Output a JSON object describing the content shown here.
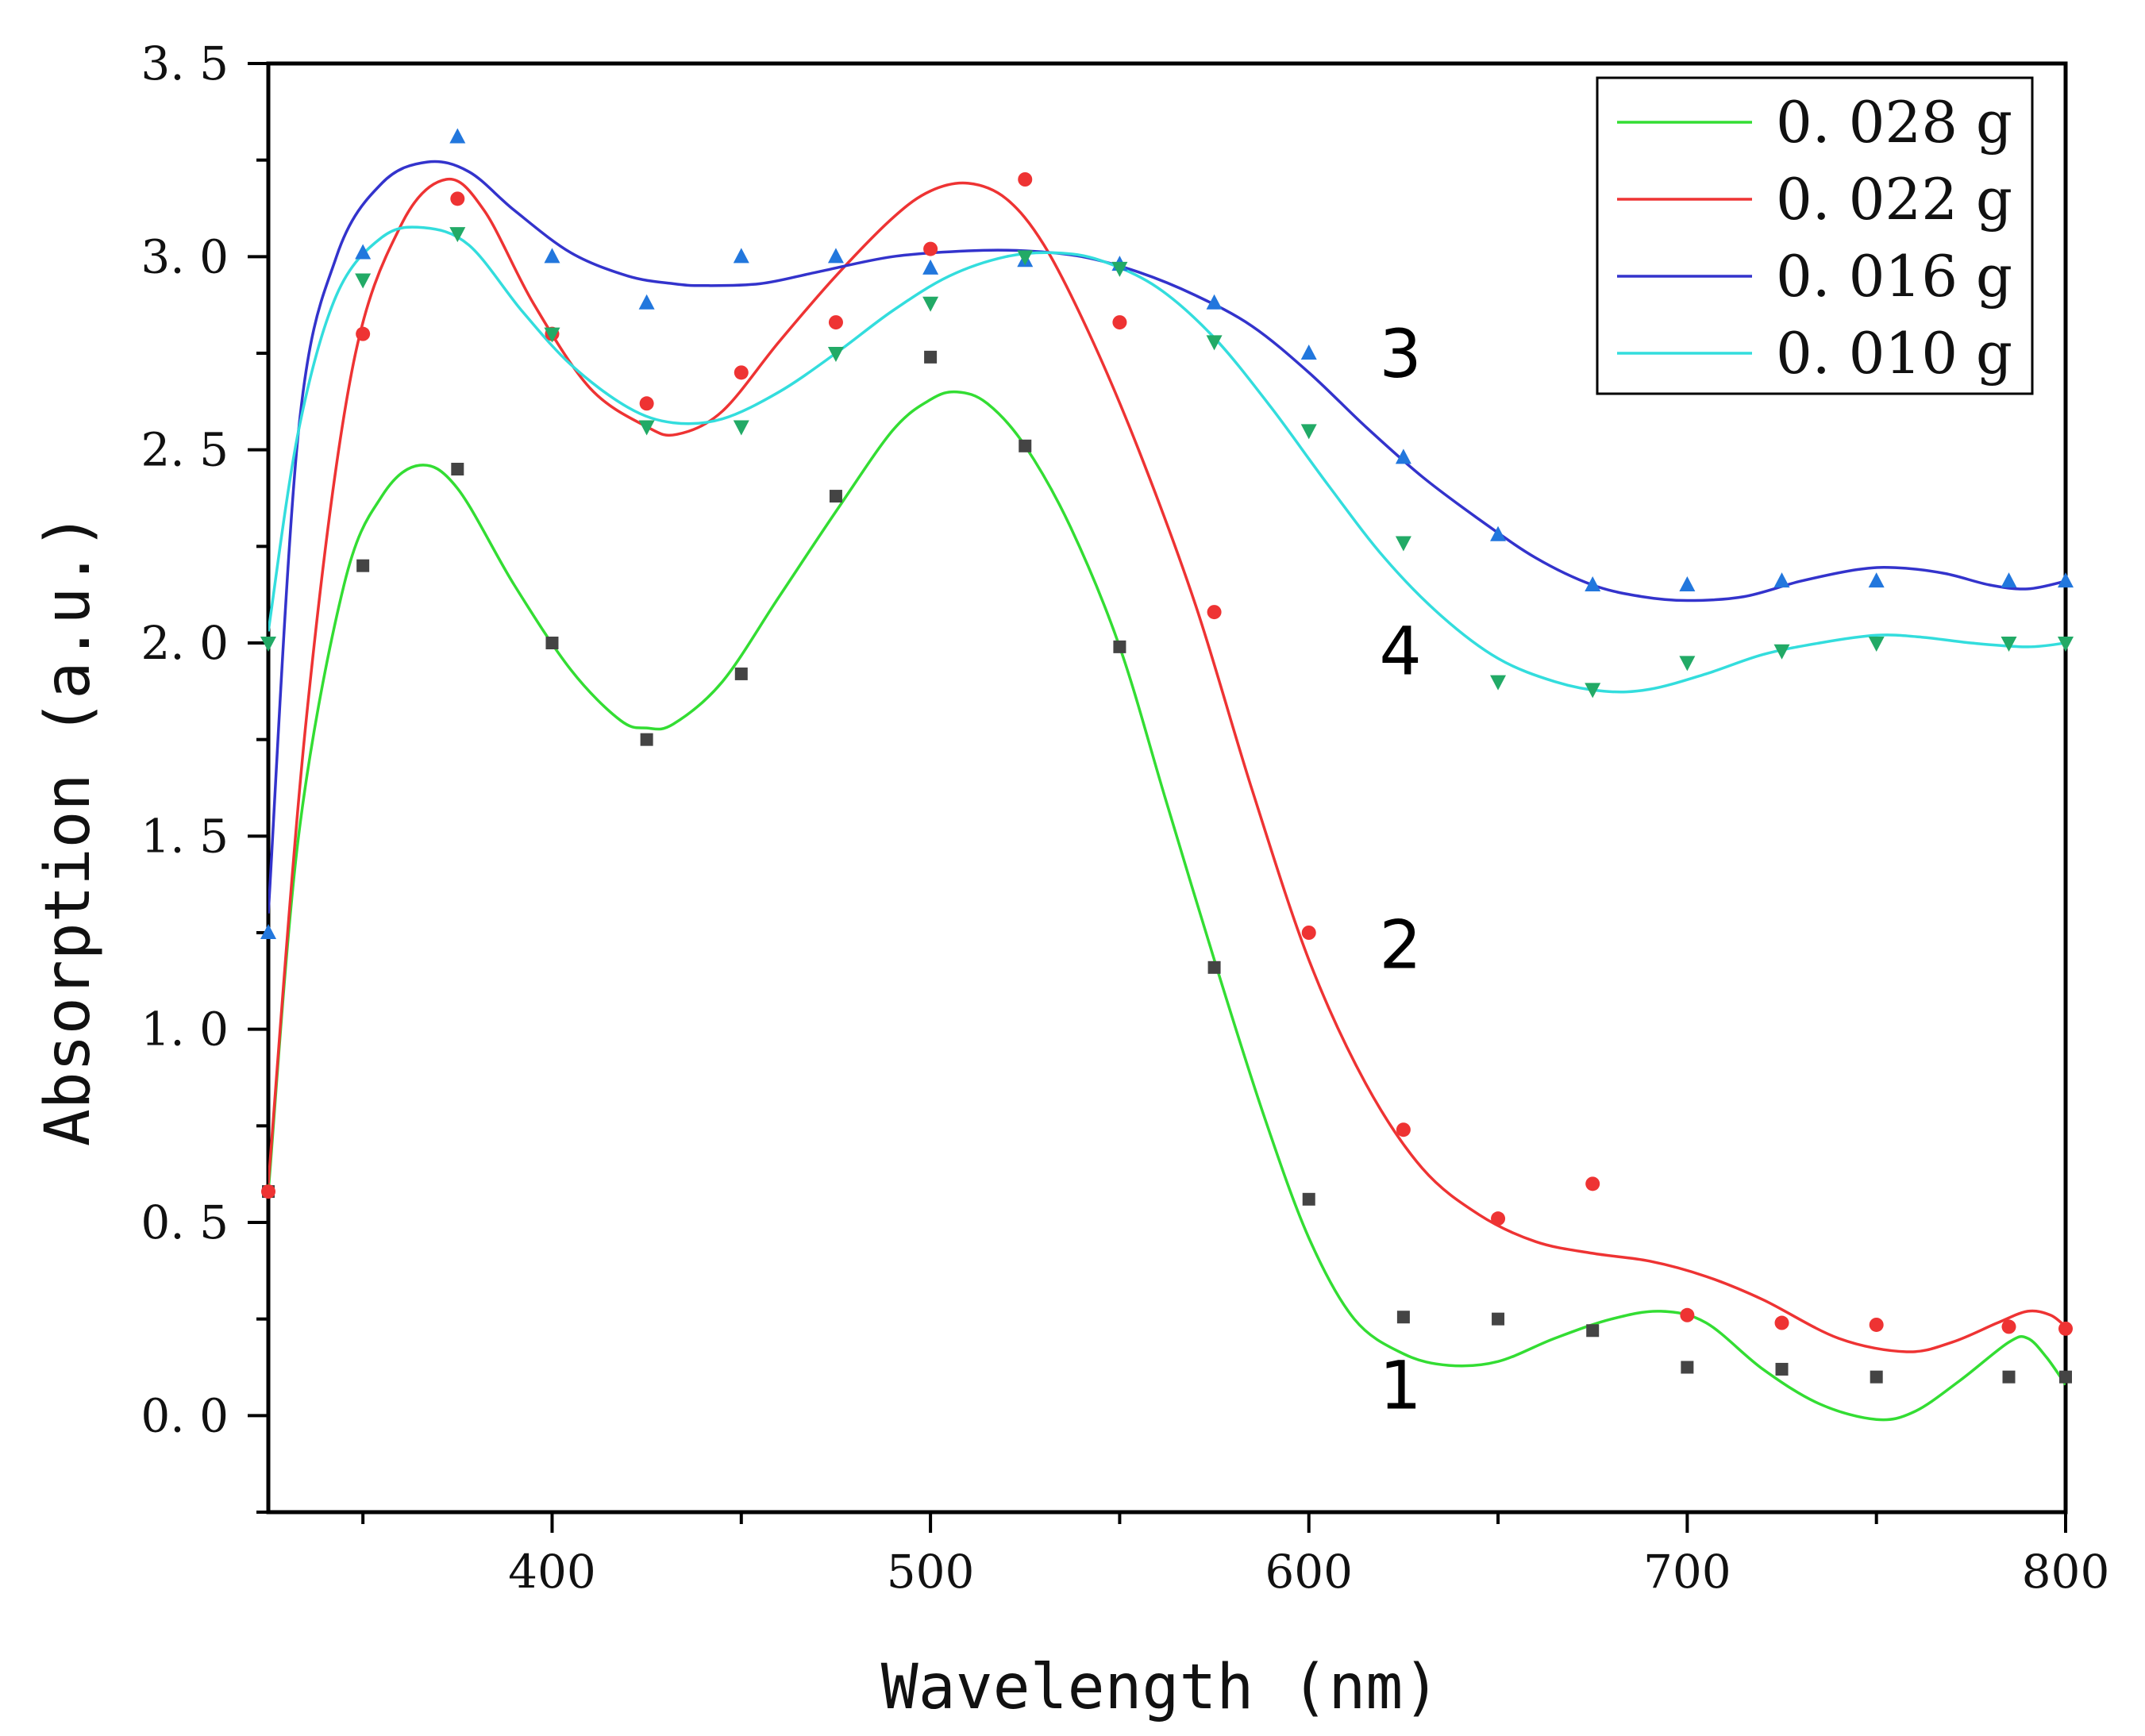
{
  "chart_data": {
    "type": "scatter",
    "xlabel": "Wavelength (nm)",
    "ylabel": "Absorption (a.u.)",
    "xlim": [
      325,
      800
    ],
    "ylim": [
      -0.25,
      3.5
    ],
    "xticks": [
      400,
      500,
      600,
      700,
      800
    ],
    "xtick_labels": [
      "400",
      "500",
      "600",
      "700",
      "800"
    ],
    "x_minor_ticks": [
      350,
      450,
      550,
      650,
      750
    ],
    "yticks": [
      0.0,
      0.5,
      1.0,
      1.5,
      2.0,
      2.5,
      3.0,
      3.5
    ],
    "ytick_labels": [
      "0. 0",
      "0. 5",
      "1. 0",
      "1. 5",
      "2. 0",
      "2. 5",
      "3. 0",
      "3. 5"
    ],
    "y_minor_ticks": [
      -0.25,
      0.25,
      0.75,
      1.25,
      1.75,
      2.25,
      2.75,
      3.25
    ],
    "legend_position": "top-right",
    "series": [
      {
        "name": "0. 028 g",
        "curve_label": "1",
        "curve_label_at": [
          620,
          0.08
        ],
        "line_color": "#33dd33",
        "marker": "square",
        "marker_color": "#444444",
        "points": [
          [
            325,
            0.58
          ],
          [
            350,
            2.2
          ],
          [
            375,
            2.45
          ],
          [
            400,
            2.0
          ],
          [
            425,
            1.75
          ],
          [
            450,
            1.92
          ],
          [
            475,
            2.38
          ],
          [
            500,
            2.74
          ],
          [
            525,
            2.51
          ],
          [
            550,
            1.99
          ],
          [
            575,
            1.16
          ],
          [
            600,
            0.56
          ],
          [
            625,
            0.255
          ],
          [
            650,
            0.25
          ],
          [
            675,
            0.22
          ],
          [
            700,
            0.125
          ],
          [
            725,
            0.12
          ],
          [
            750,
            0.1
          ],
          [
            785,
            0.1
          ],
          [
            800,
            0.1
          ]
        ],
        "curve": [
          [
            325,
            0.58
          ],
          [
            333,
            1.5
          ],
          [
            345,
            2.15
          ],
          [
            355,
            2.38
          ],
          [
            365,
            2.46
          ],
          [
            375,
            2.4
          ],
          [
            390,
            2.15
          ],
          [
            405,
            1.93
          ],
          [
            418,
            1.8
          ],
          [
            425,
            1.78
          ],
          [
            432,
            1.79
          ],
          [
            445,
            1.9
          ],
          [
            460,
            2.12
          ],
          [
            475,
            2.34
          ],
          [
            490,
            2.55
          ],
          [
            500,
            2.63
          ],
          [
            507,
            2.65
          ],
          [
            515,
            2.62
          ],
          [
            525,
            2.51
          ],
          [
            537,
            2.3
          ],
          [
            550,
            1.99
          ],
          [
            562,
            1.6
          ],
          [
            575,
            1.18
          ],
          [
            588,
            0.78
          ],
          [
            600,
            0.46
          ],
          [
            612,
            0.25
          ],
          [
            625,
            0.16
          ],
          [
            637,
            0.13
          ],
          [
            650,
            0.14
          ],
          [
            665,
            0.2
          ],
          [
            680,
            0.25
          ],
          [
            693,
            0.27
          ],
          [
            705,
            0.24
          ],
          [
            720,
            0.12
          ],
          [
            735,
            0.03
          ],
          [
            750,
            -0.01
          ],
          [
            760,
            0.01
          ],
          [
            772,
            0.09
          ],
          [
            785,
            0.19
          ],
          [
            790,
            0.2
          ],
          [
            795,
            0.15
          ],
          [
            800,
            0.08
          ]
        ]
      },
      {
        "name": "0. 022 g",
        "curve_label": "2",
        "curve_label_at": [
          620,
          1.22
        ],
        "line_color": "#ee3333",
        "marker": "circle",
        "marker_color": "#ee3333",
        "points": [
          [
            325,
            0.58
          ],
          [
            350,
            2.8
          ],
          [
            375,
            3.15
          ],
          [
            400,
            2.8
          ],
          [
            425,
            2.62
          ],
          [
            450,
            2.7
          ],
          [
            475,
            2.83
          ],
          [
            500,
            3.02
          ],
          [
            525,
            3.2
          ],
          [
            550,
            2.83
          ],
          [
            575,
            2.08
          ],
          [
            600,
            1.25
          ],
          [
            625,
            0.74
          ],
          [
            650,
            0.51
          ],
          [
            675,
            0.6
          ],
          [
            700,
            0.26
          ],
          [
            725,
            0.24
          ],
          [
            750,
            0.235
          ],
          [
            785,
            0.23
          ],
          [
            800,
            0.225
          ]
        ],
        "curve": [
          [
            325,
            0.6
          ],
          [
            335,
            1.8
          ],
          [
            347,
            2.7
          ],
          [
            360,
            3.08
          ],
          [
            372,
            3.2
          ],
          [
            382,
            3.12
          ],
          [
            395,
            2.88
          ],
          [
            410,
            2.66
          ],
          [
            425,
            2.56
          ],
          [
            433,
            2.54
          ],
          [
            445,
            2.6
          ],
          [
            460,
            2.78
          ],
          [
            475,
            2.95
          ],
          [
            490,
            3.1
          ],
          [
            500,
            3.17
          ],
          [
            510,
            3.19
          ],
          [
            520,
            3.15
          ],
          [
            530,
            3.03
          ],
          [
            542,
            2.8
          ],
          [
            555,
            2.5
          ],
          [
            570,
            2.1
          ],
          [
            585,
            1.62
          ],
          [
            600,
            1.18
          ],
          [
            615,
            0.86
          ],
          [
            630,
            0.64
          ],
          [
            645,
            0.52
          ],
          [
            660,
            0.45
          ],
          [
            675,
            0.42
          ],
          [
            690,
            0.4
          ],
          [
            705,
            0.36
          ],
          [
            720,
            0.3
          ],
          [
            740,
            0.2
          ],
          [
            758,
            0.165
          ],
          [
            770,
            0.19
          ],
          [
            782,
            0.24
          ],
          [
            790,
            0.27
          ],
          [
            796,
            0.26
          ],
          [
            800,
            0.23
          ]
        ]
      },
      {
        "name": "0. 016 g",
        "curve_label": "3",
        "curve_label_at": [
          620,
          2.75
        ],
        "line_color": "#3333cc",
        "marker": "triangle-up",
        "marker_color": "#2277dd",
        "points": [
          [
            325,
            1.25
          ],
          [
            350,
            3.01
          ],
          [
            375,
            3.31
          ],
          [
            400,
            3.0
          ],
          [
            425,
            2.88
          ],
          [
            450,
            3.0
          ],
          [
            475,
            3.0
          ],
          [
            500,
            2.97
          ],
          [
            525,
            2.99
          ],
          [
            550,
            2.98
          ],
          [
            575,
            2.88
          ],
          [
            600,
            2.75
          ],
          [
            625,
            2.48
          ],
          [
            650,
            2.28
          ],
          [
            675,
            2.15
          ],
          [
            700,
            2.15
          ],
          [
            725,
            2.16
          ],
          [
            750,
            2.16
          ],
          [
            785,
            2.16
          ],
          [
            800,
            2.16
          ]
        ],
        "curve": [
          [
            325,
            1.3
          ],
          [
            333,
            2.55
          ],
          [
            343,
            3.0
          ],
          [
            355,
            3.19
          ],
          [
            367,
            3.245
          ],
          [
            378,
            3.22
          ],
          [
            390,
            3.12
          ],
          [
            405,
            3.01
          ],
          [
            420,
            2.95
          ],
          [
            432,
            2.93
          ],
          [
            440,
            2.925
          ],
          [
            455,
            2.93
          ],
          [
            470,
            2.96
          ],
          [
            490,
            3.0
          ],
          [
            510,
            3.015
          ],
          [
            525,
            3.015
          ],
          [
            540,
            3.0
          ],
          [
            555,
            2.96
          ],
          [
            570,
            2.9
          ],
          [
            585,
            2.82
          ],
          [
            600,
            2.7
          ],
          [
            615,
            2.56
          ],
          [
            630,
            2.43
          ],
          [
            645,
            2.32
          ],
          [
            660,
            2.22
          ],
          [
            675,
            2.15
          ],
          [
            688,
            2.12
          ],
          [
            700,
            2.11
          ],
          [
            715,
            2.12
          ],
          [
            730,
            2.16
          ],
          [
            745,
            2.19
          ],
          [
            755,
            2.195
          ],
          [
            768,
            2.18
          ],
          [
            780,
            2.15
          ],
          [
            790,
            2.14
          ],
          [
            800,
            2.16
          ]
        ]
      },
      {
        "name": "0. 010 g",
        "curve_label": "4",
        "curve_label_at": [
          620,
          1.98
        ],
        "line_color": "#33dddd",
        "marker": "triangle-down",
        "marker_color": "#22aa66",
        "points": [
          [
            325,
            2.0
          ],
          [
            350,
            2.94
          ],
          [
            375,
            3.06
          ],
          [
            400,
            2.8
          ],
          [
            425,
            2.56
          ],
          [
            450,
            2.56
          ],
          [
            475,
            2.75
          ],
          [
            500,
            2.88
          ],
          [
            525,
            3.0
          ],
          [
            550,
            2.97
          ],
          [
            575,
            2.78
          ],
          [
            600,
            2.55
          ],
          [
            625,
            2.26
          ],
          [
            650,
            1.9
          ],
          [
            675,
            1.88
          ],
          [
            700,
            1.95
          ],
          [
            725,
            1.98
          ],
          [
            750,
            2.0
          ],
          [
            785,
            2.0
          ],
          [
            800,
            2.0
          ]
        ],
        "curve": [
          [
            325,
            2.03
          ],
          [
            333,
            2.55
          ],
          [
            343,
            2.9
          ],
          [
            355,
            3.05
          ],
          [
            366,
            3.075
          ],
          [
            378,
            3.03
          ],
          [
            392,
            2.86
          ],
          [
            405,
            2.72
          ],
          [
            420,
            2.61
          ],
          [
            432,
            2.57
          ],
          [
            445,
            2.58
          ],
          [
            460,
            2.65
          ],
          [
            475,
            2.75
          ],
          [
            490,
            2.86
          ],
          [
            505,
            2.95
          ],
          [
            520,
            3.0
          ],
          [
            533,
            3.01
          ],
          [
            545,
            2.99
          ],
          [
            560,
            2.92
          ],
          [
            575,
            2.79
          ],
          [
            590,
            2.61
          ],
          [
            605,
            2.41
          ],
          [
            620,
            2.22
          ],
          [
            635,
            2.07
          ],
          [
            650,
            1.96
          ],
          [
            665,
            1.9
          ],
          [
            678,
            1.875
          ],
          [
            690,
            1.88
          ],
          [
            705,
            1.92
          ],
          [
            720,
            1.97
          ],
          [
            735,
            2.0
          ],
          [
            750,
            2.02
          ],
          [
            762,
            2.015
          ],
          [
            775,
            2.0
          ],
          [
            790,
            1.99
          ],
          [
            800,
            2.0
          ]
        ]
      }
    ]
  }
}
